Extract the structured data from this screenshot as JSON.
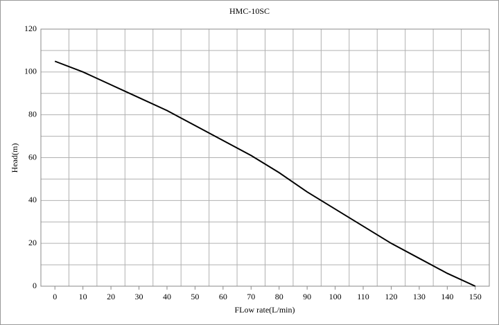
{
  "chart_data": {
    "type": "line",
    "title": "HMC-10SC",
    "x_label": "FLow rate(L/min)",
    "y_label": "Head(m)",
    "x": [
      0,
      10,
      20,
      30,
      40,
      50,
      60,
      70,
      80,
      90,
      100,
      110,
      120,
      130,
      140,
      150
    ],
    "series": [
      {
        "name": "Head",
        "color": "#000000",
        "values": [
          105,
          100,
          94,
          88,
          82,
          75,
          68,
          61,
          53,
          44,
          36,
          28,
          20,
          13,
          6,
          0
        ]
      }
    ],
    "xlim": [
      -5,
      155
    ],
    "xticks": [
      0,
      10,
      20,
      30,
      40,
      50,
      60,
      70,
      80,
      90,
      100,
      110,
      120,
      130,
      140,
      150
    ],
    "ylim": [
      0,
      120
    ],
    "yticks": [
      0,
      20,
      40,
      60,
      80,
      100,
      120
    ],
    "grid": true
  }
}
